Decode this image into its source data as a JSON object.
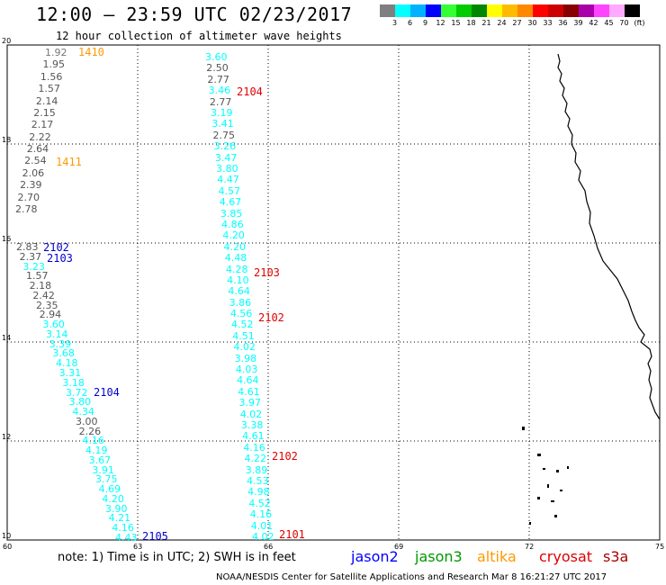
{
  "header": {
    "title": "12:00 – 23:59 UTC 02/23/2017",
    "subtitle": "12 hour collection of altimeter wave heights"
  },
  "colorbar": {
    "colors": [
      "#7f7f7f",
      "#00ffff",
      "#00b2ff",
      "#0000ff",
      "#33ff33",
      "#00cc00",
      "#008800",
      "#ffff00",
      "#ffbb00",
      "#ff8800",
      "#ff0000",
      "#cc0000",
      "#880000",
      "#aa00aa",
      "#ff44ff",
      "#ffaaff",
      "#000000"
    ],
    "labels": [
      "3",
      "6",
      "9",
      "12",
      "15",
      "18",
      "21",
      "24",
      "27",
      "30",
      "33",
      "36",
      "39",
      "42",
      "45",
      "70",
      "(ft)"
    ]
  },
  "axes": {
    "x_ticks": [
      "60",
      "63",
      "66",
      "69",
      "72",
      "75"
    ],
    "y_ticks": [
      "20",
      "18",
      "16",
      "14",
      "12",
      "10"
    ]
  },
  "chart_data": {
    "type": "scatter",
    "title": "12:00 – 23:59 UTC 02/23/2017",
    "subtitle": "12 hour collection of altimeter wave heights",
    "xlim": [
      60,
      75
    ],
    "ylim": [
      10,
      20
    ],
    "grid": true,
    "legend": "bottom",
    "tracks": [
      {
        "series": "jason2",
        "lon": 60.1,
        "lat_start": 16.05,
        "lat_end": 10.2,
        "color": "#00ffff",
        "values": [
          "2.83",
          "2.37",
          "3.23",
          "1.57",
          "2.18",
          "2.42",
          "2.35",
          "2.94",
          "3.60",
          "3.14",
          "3.39",
          "3.68",
          "4.18",
          "3.31",
          "3.18",
          "3.72",
          "3.80",
          "4.34",
          "3.00",
          "2.26",
          "4.16",
          "4.19",
          "3.67",
          "3.91",
          "3.75",
          "4.69",
          "4.20",
          "3.90",
          "4.21",
          "4.16",
          "4.43"
        ]
      },
      {
        "series": "other",
        "lon": 60.6,
        "lat_start": 20.0,
        "lat_end": 16.85,
        "color": "#000000",
        "values": [
          "1.92",
          "1.95",
          "1.56",
          "1.57",
          "2.14",
          "2.15",
          "2.17",
          "2.22",
          "2.64",
          "2.54",
          "2.06",
          "2.39",
          "2.70",
          "2.78"
        ]
      },
      {
        "series": "cryosat",
        "lon": 64.8,
        "lat_start": 19.9,
        "lat_end": 10.2,
        "color": "#00ffff",
        "values": [
          "3.60",
          "2.50",
          "2.77",
          "3.46",
          "2.77",
          "3.19",
          "3.41",
          "2.75",
          "3.26",
          "3.47",
          "3.80",
          "4.47",
          "4.57",
          "4.67",
          "3.85",
          "4.86",
          "4.20",
          "4.20",
          "4.48",
          "4.28",
          "4.10",
          "4.64",
          "3.86",
          "4.56",
          "4.52",
          "4.51",
          "4.02",
          "3.98",
          "4.03",
          "4.64",
          "4.61",
          "3.97",
          "4.02",
          "3.38",
          "4.61",
          "4.16",
          "4.22",
          "3.89",
          "4.53",
          "4.98",
          "4.52",
          "4.16",
          "4.01",
          "4.02"
        ]
      }
    ],
    "pass_labels": [
      {
        "text": "1410",
        "series": "altika",
        "color": "#ff9900"
      },
      {
        "text": "1411",
        "series": "altika",
        "color": "#ff9900"
      },
      {
        "text": "2102",
        "series": "jason2",
        "color": "#0000cc"
      },
      {
        "text": "2103",
        "series": "jason2",
        "color": "#0000cc"
      },
      {
        "text": "2104",
        "series": "jason2",
        "color": "#0000cc"
      },
      {
        "text": "2105",
        "series": "jason2",
        "color": "#0000cc"
      },
      {
        "text": "2104",
        "series": "cryosat",
        "color": "#dd0000"
      },
      {
        "text": "2103",
        "series": "cryosat",
        "color": "#dd0000"
      },
      {
        "text": "2102",
        "series": "cryosat",
        "color": "#dd0000"
      },
      {
        "text": "2102",
        "series": "cryosat",
        "color": "#dd0000"
      },
      {
        "text": "2101",
        "series": "cryosat",
        "color": "#dd0000"
      }
    ]
  },
  "footer": {
    "note": "note: 1) Time is in UTC; 2) SWH is in feet",
    "legend": [
      {
        "name": "jason2",
        "color": "#0000ff"
      },
      {
        "name": "jason3",
        "color": "#009900"
      },
      {
        "name": "altika",
        "color": "#ff9900"
      },
      {
        "name": "cryosat",
        "color": "#dd0000"
      },
      {
        "name": "s3a",
        "color": "#aa0000"
      }
    ],
    "credit": "NOAA/NESDIS Center for Satellite Applications and Research    Mar  8 16:21:27 UTC 2017"
  }
}
